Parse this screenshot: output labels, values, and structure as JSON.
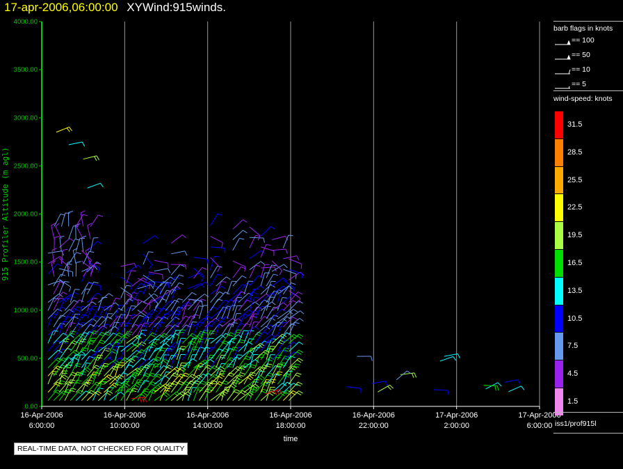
{
  "header": {
    "date_label": "17-apr-2006,06:00:00",
    "title": "XYWind:915winds."
  },
  "chart_data": {
    "type": "scatter",
    "subtype": "wind-barb time-height",
    "xlabel": "time",
    "ylabel": "915 Profiler Altitude (m agl)",
    "ylim": [
      0,
      4000
    ],
    "yticks": [
      "0.00",
      "500.00",
      "1000.00",
      "1500.00",
      "2000.00",
      "2500.00",
      "3000.00",
      "3500.00",
      "4000.00"
    ],
    "xlim_hours": [
      0,
      24
    ],
    "xticks": [
      {
        "line1": "16-Apr-2006",
        "line2": "6:00:00"
      },
      {
        "line1": "16-Apr-2006",
        "line2": "10:00:00"
      },
      {
        "line1": "16-Apr-2006",
        "line2": "14:00:00"
      },
      {
        "line1": "16-Apr-2006",
        "line2": "18:00:00"
      },
      {
        "line1": "16-Apr-2006",
        "line2": "22:00:00"
      },
      {
        "line1": "17-Apr-2006",
        "line2": "2:00:00"
      },
      {
        "line1": "17-Apr-2006",
        "line2": "6:00:00"
      }
    ],
    "grid": "vertical",
    "axis_color": "#00cc00",
    "data_summary": "915 MHz profiler wind barbs; dense coverage 0-1000 m from 6:00 to 18:00, scattered up to ~1900 m, sparse high winds near 2300-2900 m early, sparse low-level winds after 18:00",
    "samples": [
      {
        "t": 0.7,
        "z": 2850,
        "spd": 22
      },
      {
        "t": 1.3,
        "z": 2720,
        "spd": 14
      },
      {
        "t": 2.0,
        "z": 2570,
        "spd": 20
      },
      {
        "t": 2.2,
        "z": 2270,
        "spd": 14
      },
      {
        "t": 4.3,
        "z": 80,
        "spd": 31
      },
      {
        "t": 10.8,
        "z": 130,
        "spd": 31
      },
      {
        "t": 15.2,
        "z": 520,
        "spd": 6
      },
      {
        "t": 16.2,
        "z": 150,
        "spd": 20
      },
      {
        "t": 17.3,
        "z": 330,
        "spd": 19
      },
      {
        "t": 19.2,
        "z": 470,
        "spd": 13
      },
      {
        "t": 19.4,
        "z": 520,
        "spd": 12
      },
      {
        "t": 21.4,
        "z": 180,
        "spd": 13
      },
      {
        "t": 22.3,
        "z": 250,
        "spd": 9
      }
    ]
  },
  "legend": {
    "barb_title": "barb flags in knots",
    "barb_items": [
      "== 100",
      "== 50",
      "== 10",
      "== 5"
    ],
    "speed_title": "wind-speed: knots",
    "speed_scale": [
      {
        "label": "31.5",
        "color": "#ff0000"
      },
      {
        "label": "28.5",
        "color": "#ff7f00"
      },
      {
        "label": "25.5",
        "color": "#ffaa00"
      },
      {
        "label": "22.5",
        "color": "#ffff00"
      },
      {
        "label": "19.5",
        "color": "#aaff44"
      },
      {
        "label": "16.5",
        "color": "#00dd00"
      },
      {
        "label": "13.5",
        "color": "#00ffff"
      },
      {
        "label": "10.5",
        "color": "#0000ff"
      },
      {
        "label": "7.5",
        "color": "#6699ee"
      },
      {
        "label": "4.5",
        "color": "#9922ee"
      },
      {
        "label": "1.5",
        "color": "#ee88ee"
      }
    ],
    "source": "iss1/prof915l"
  },
  "footer": {
    "qc_notice": "REAL-TIME DATA, NOT CHECKED FOR QUALITY"
  }
}
